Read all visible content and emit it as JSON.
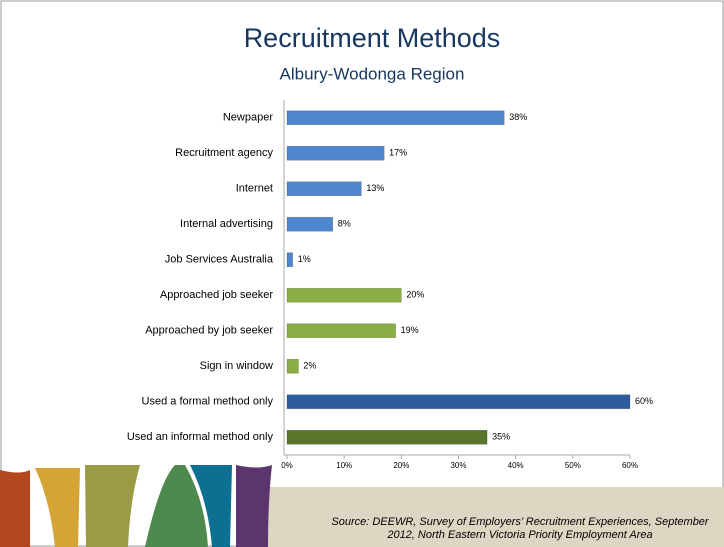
{
  "chart_data": {
    "type": "bar",
    "orientation": "horizontal",
    "title": "Recruitment Methods",
    "subtitle": "Albury-Wodonga Region",
    "categories": [
      "Newpaper",
      "Recruitment agency",
      "Internet",
      "Internal advertising",
      "Job Services Australia",
      "Approached job seeker",
      "Approached by job seeker",
      "Sign in window",
      "Used a formal method only",
      "Used an informal method only"
    ],
    "values": [
      38,
      17,
      13,
      8,
      1,
      20,
      19,
      2,
      60,
      35
    ],
    "value_labels": [
      "38%",
      "17%",
      "13%",
      "8%",
      "1%",
      "20%",
      "19%",
      "2%",
      "60%",
      "35%"
    ],
    "colors": [
      "#4f86cf",
      "#4f86cf",
      "#4f86cf",
      "#4f86cf",
      "#4f86cf",
      "#8aae45",
      "#8aae45",
      "#8aae45",
      "#2d5d9f",
      "#58752a"
    ],
    "xlim": [
      0,
      60
    ],
    "xticks": [
      {
        "value": 0,
        "label": "0%"
      },
      {
        "value": 10,
        "label": "10%"
      },
      {
        "value": 20,
        "label": "20%"
      },
      {
        "value": 30,
        "label": "30%"
      },
      {
        "value": 40,
        "label": "40%"
      },
      {
        "value": 50,
        "label": "50%"
      },
      {
        "value": 60,
        "label": "60%"
      }
    ],
    "source": [
      "Source: DEEWR, Survey of Employers’ Recruitment Experiences, September",
      "2012, North Eastern Victoria Priority Employment Area"
    ]
  }
}
